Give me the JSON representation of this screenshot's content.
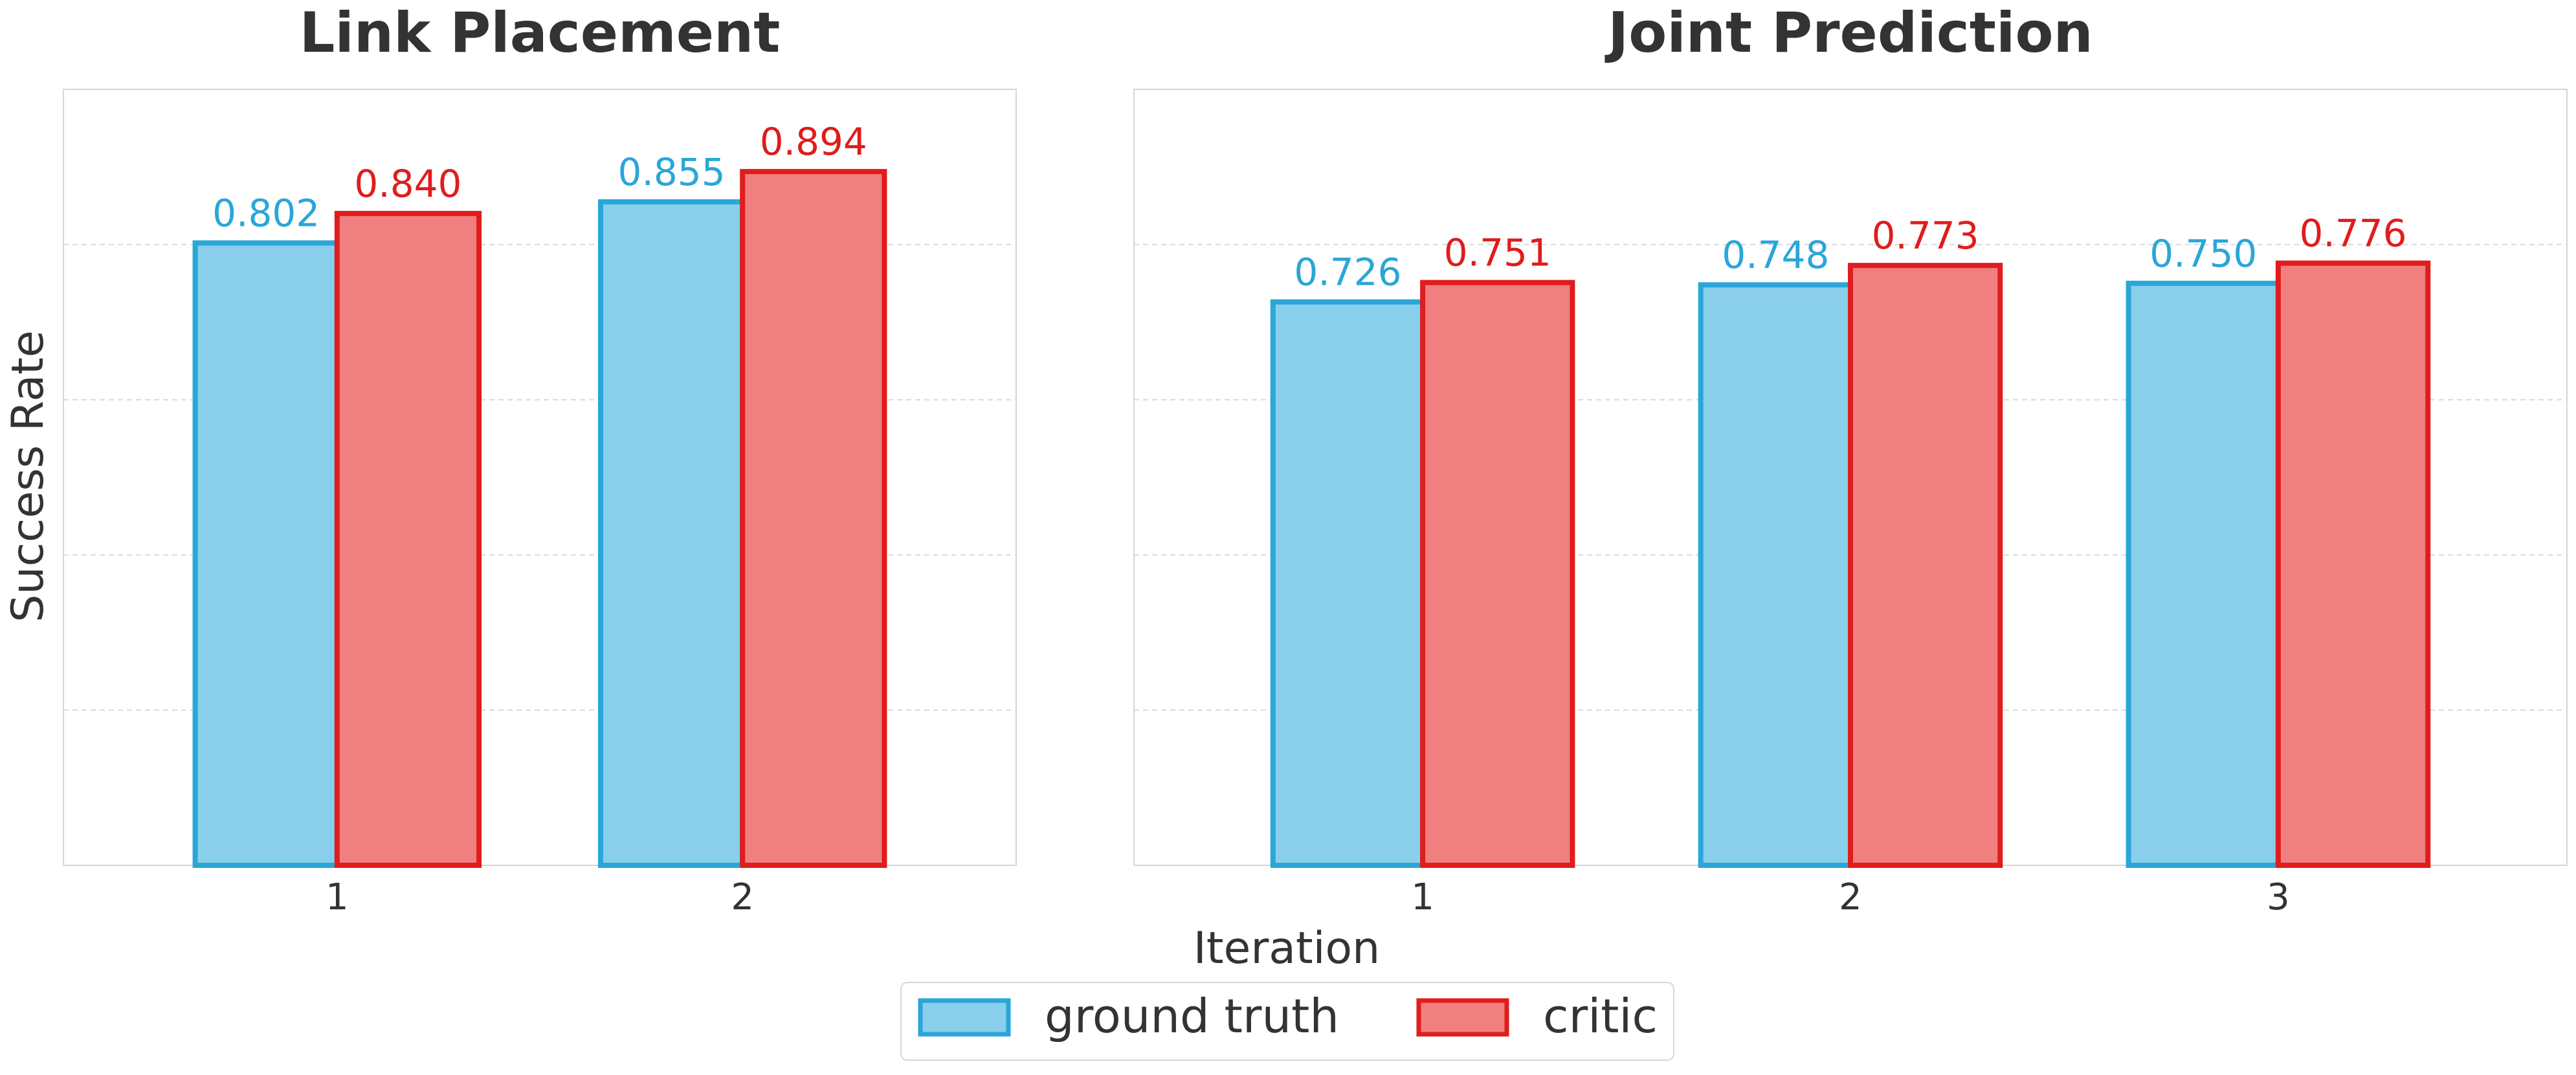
{
  "colors": {
    "ground_truth_fill": "#89cfeb",
    "ground_truth_edge": "#2aa6d8",
    "critic_fill": "#f08080",
    "critic_edge": "#e01c1c",
    "text": "#333333",
    "grid": "#d9d9d9",
    "frame": "#d6d6d6"
  },
  "figure": {
    "ylabel": "Success Rate",
    "xlabel": "Iteration"
  },
  "legend": {
    "placement": "bottom-center",
    "entries": [
      "ground truth",
      "critic"
    ]
  },
  "chart_data": [
    {
      "type": "bar",
      "title": "Link Placement",
      "categories": [
        "1",
        "2"
      ],
      "series": [
        {
          "name": "ground truth",
          "values": [
            0.802,
            0.855
          ]
        },
        {
          "name": "critic",
          "values": [
            0.84,
            0.894
          ]
        }
      ],
      "data_labels": [
        [
          "0.802",
          "0.840"
        ],
        [
          "0.855",
          "0.894"
        ]
      ],
      "ylim": [
        0,
        1.0
      ],
      "grid": true
    },
    {
      "type": "bar",
      "title": "Joint Prediction",
      "categories": [
        "1",
        "2",
        "3"
      ],
      "series": [
        {
          "name": "ground truth",
          "values": [
            0.726,
            0.748,
            0.75
          ]
        },
        {
          "name": "critic",
          "values": [
            0.751,
            0.773,
            0.776
          ]
        }
      ],
      "data_labels": [
        [
          "0.726",
          "0.751"
        ],
        [
          "0.748",
          "0.773"
        ],
        [
          "0.750",
          "0.776"
        ]
      ],
      "ylim": [
        0,
        1.0
      ],
      "grid": true
    }
  ]
}
